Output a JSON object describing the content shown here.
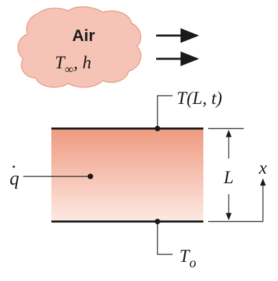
{
  "diagram": {
    "cloud": {
      "title": "Air",
      "line2_symbol": "T",
      "line2_subscript": "∞",
      "line2_suffix": ", h"
    },
    "labels": {
      "top_temperature": "T(L, t)",
      "bottom_temperature_symbol": "T",
      "bottom_temperature_subscript": "o",
      "generation_symbol": "q",
      "generation_dot": "•",
      "thickness": "L",
      "axis": "x"
    },
    "colors": {
      "cloud_fill": "#f6c4b6",
      "cloud_stroke": "#e9a08c",
      "slab_top": "#ef9a80",
      "slab_bottom": "#fde9e3",
      "ink": "#1a1a1a"
    }
  }
}
